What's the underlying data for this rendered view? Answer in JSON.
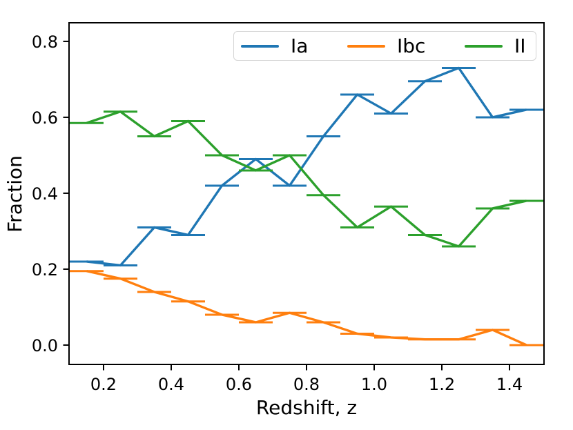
{
  "chart_data": {
    "type": "line",
    "title": "",
    "xlabel": "Redshift, z",
    "ylabel": "Fraction",
    "x": [
      0.15,
      0.25,
      0.35,
      0.45,
      0.55,
      0.65,
      0.75,
      0.85,
      0.95,
      1.05,
      1.15,
      1.25,
      1.35,
      1.45
    ],
    "xerr": 0.05,
    "series": [
      {
        "name": "Ia",
        "color": "#1f77b4",
        "values": [
          0.22,
          0.21,
          0.31,
          0.29,
          0.42,
          0.49,
          0.42,
          0.55,
          0.66,
          0.61,
          0.695,
          0.73,
          0.6,
          0.62
        ]
      },
      {
        "name": "Ibc",
        "color": "#ff7f0e",
        "values": [
          0.195,
          0.175,
          0.14,
          0.115,
          0.08,
          0.06,
          0.085,
          0.06,
          0.03,
          0.02,
          0.015,
          0.015,
          0.04,
          0.0
        ]
      },
      {
        "name": "II",
        "color": "#2ca02c",
        "values": [
          0.585,
          0.615,
          0.55,
          0.59,
          0.5,
          0.46,
          0.5,
          0.395,
          0.31,
          0.365,
          0.29,
          0.26,
          0.36,
          0.38
        ]
      }
    ],
    "xlim": [
      0.098,
      1.502
    ],
    "ylim": [
      -0.051,
      0.849
    ],
    "xticks": [
      0.2,
      0.4,
      0.6,
      0.8,
      1.0,
      1.2,
      1.4
    ],
    "yticks": [
      0.0,
      0.2,
      0.4,
      0.6,
      0.8
    ],
    "grid": false,
    "legend_position": "upper center",
    "axis_color": "#000000",
    "tick_label_color": "#000000"
  }
}
